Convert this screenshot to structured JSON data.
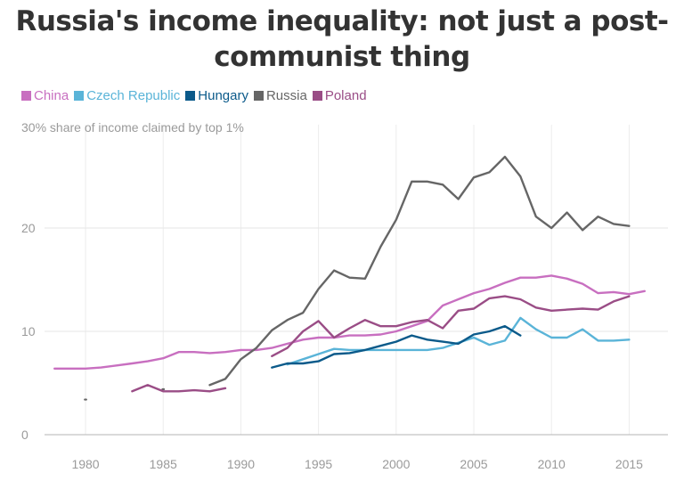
{
  "title": "Russia's income inequality: not just a post-communist thing",
  "title_lines": [
    "Russia's income inequality: not just a post-",
    "communist thing"
  ],
  "chart_data": {
    "type": "line",
    "title": "Russia's income inequality: not just a post-communist thing",
    "ylabel": "share of income claimed by top 1%",
    "ylabel_prefix": "30%",
    "xlim": [
      1976.5,
      2017.5
    ],
    "ylim": [
      0,
      30
    ],
    "xticks": [
      1980,
      1985,
      1990,
      1995,
      2000,
      2005,
      2010,
      2015
    ],
    "yticks": [
      0,
      10,
      20
    ],
    "grid": true,
    "legend_position": "top-left",
    "series": [
      {
        "name": "China",
        "color": "#c86fc0",
        "points": [
          [
            1978,
            6.4
          ],
          [
            1979,
            6.4
          ],
          [
            1980,
            6.4
          ],
          [
            1981,
            6.5
          ],
          [
            1982,
            6.7
          ],
          [
            1983,
            6.9
          ],
          [
            1984,
            7.1
          ],
          [
            1985,
            7.4
          ],
          [
            1986,
            8.0
          ],
          [
            1987,
            8.0
          ],
          [
            1988,
            7.9
          ],
          [
            1989,
            8.0
          ],
          [
            1990,
            8.2
          ],
          [
            1991,
            8.2
          ],
          [
            1992,
            8.4
          ],
          [
            1993,
            8.8
          ],
          [
            1994,
            9.2
          ],
          [
            1995,
            9.4
          ],
          [
            1996,
            9.4
          ],
          [
            1997,
            9.6
          ],
          [
            1998,
            9.6
          ],
          [
            1999,
            9.7
          ],
          [
            2000,
            10.0
          ],
          [
            2001,
            10.5
          ],
          [
            2002,
            11.0
          ],
          [
            2003,
            12.5
          ],
          [
            2004,
            13.1
          ],
          [
            2005,
            13.7
          ],
          [
            2006,
            14.1
          ],
          [
            2007,
            14.7
          ],
          [
            2008,
            15.2
          ],
          [
            2009,
            15.2
          ],
          [
            2010,
            15.4
          ],
          [
            2011,
            15.1
          ],
          [
            2012,
            14.6
          ],
          [
            2013,
            13.7
          ],
          [
            2014,
            13.8
          ],
          [
            2015,
            13.6
          ],
          [
            2016,
            13.9
          ]
        ]
      },
      {
        "name": "Czech Republic",
        "color": "#5ab4d8",
        "points": [
          [
            1993,
            6.8
          ],
          [
            1994,
            7.3
          ],
          [
            1995,
            7.8
          ],
          [
            1996,
            8.3
          ],
          [
            1997,
            8.2
          ],
          [
            1998,
            8.2
          ],
          [
            1999,
            8.2
          ],
          [
            2000,
            8.2
          ],
          [
            2001,
            8.2
          ],
          [
            2002,
            8.2
          ],
          [
            2003,
            8.4
          ],
          [
            2004,
            8.9
          ],
          [
            2005,
            9.4
          ],
          [
            2006,
            8.7
          ],
          [
            2007,
            9.1
          ],
          [
            2008,
            11.3
          ],
          [
            2009,
            10.2
          ],
          [
            2010,
            9.4
          ],
          [
            2011,
            9.4
          ],
          [
            2012,
            10.2
          ],
          [
            2013,
            9.1
          ],
          [
            2014,
            9.1
          ],
          [
            2015,
            9.2
          ]
        ]
      },
      {
        "name": "Hungary",
        "color": "#0b5a8a",
        "points": [
          [
            1992,
            6.5
          ],
          [
            1993,
            6.9
          ],
          [
            1994,
            6.9
          ],
          [
            1995,
            7.1
          ],
          [
            1996,
            7.8
          ],
          [
            1997,
            7.9
          ],
          [
            1998,
            8.2
          ],
          [
            1999,
            8.6
          ],
          [
            2000,
            9.0
          ],
          [
            2001,
            9.6
          ],
          [
            2002,
            9.2
          ],
          [
            2003,
            9.0
          ],
          [
            2004,
            8.8
          ],
          [
            2005,
            9.7
          ],
          [
            2006,
            10.0
          ],
          [
            2007,
            10.5
          ],
          [
            2008,
            9.6
          ]
        ]
      },
      {
        "name": "Russia",
        "color": "#666666",
        "segments": [
          [
            [
              1980,
              3.4
            ]
          ],
          [
            [
              1985,
              4.4
            ]
          ],
          [
            [
              1988,
              4.8
            ],
            [
              1989,
              5.4
            ],
            [
              1990,
              7.3
            ],
            [
              1991,
              8.4
            ],
            [
              1992,
              10.1
            ],
            [
              1993,
              11.1
            ],
            [
              1994,
              11.8
            ],
            [
              1995,
              14.1
            ],
            [
              1996,
              15.9
            ],
            [
              1997,
              15.2
            ],
            [
              1998,
              15.1
            ],
            [
              1999,
              18.2
            ],
            [
              2000,
              20.8
            ],
            [
              2001,
              24.5
            ],
            [
              2002,
              24.5
            ],
            [
              2003,
              24.2
            ],
            [
              2004,
              22.8
            ],
            [
              2005,
              24.9
            ],
            [
              2006,
              25.4
            ],
            [
              2007,
              26.9
            ],
            [
              2008,
              25.0
            ],
            [
              2009,
              21.1
            ],
            [
              2010,
              20.0
            ],
            [
              2011,
              21.5
            ],
            [
              2012,
              19.8
            ],
            [
              2013,
              21.1
            ],
            [
              2014,
              20.4
            ],
            [
              2015,
              20.2
            ]
          ]
        ]
      },
      {
        "name": "Poland",
        "color": "#9a4d86",
        "segments": [
          [
            [
              1983,
              4.2
            ],
            [
              1984,
              4.8
            ],
            [
              1985,
              4.2
            ],
            [
              1986,
              4.2
            ],
            [
              1987,
              4.3
            ],
            [
              1988,
              4.2
            ],
            [
              1989,
              4.5
            ]
          ],
          [
            [
              1992,
              7.6
            ],
            [
              1993,
              8.4
            ],
            [
              1994,
              10.0
            ],
            [
              1995,
              11.0
            ],
            [
              1996,
              9.4
            ],
            [
              1997,
              10.3
            ],
            [
              1998,
              11.1
            ],
            [
              1999,
              10.5
            ],
            [
              2000,
              10.5
            ],
            [
              2001,
              10.9
            ],
            [
              2002,
              11.1
            ],
            [
              2003,
              10.3
            ],
            [
              2004,
              12.0
            ],
            [
              2005,
              12.2
            ],
            [
              2006,
              13.2
            ],
            [
              2007,
              13.4
            ],
            [
              2008,
              13.1
            ],
            [
              2009,
              12.3
            ],
            [
              2010,
              12.0
            ],
            [
              2011,
              12.1
            ],
            [
              2012,
              12.2
            ],
            [
              2013,
              12.1
            ],
            [
              2014,
              12.9
            ],
            [
              2015,
              13.4
            ]
          ]
        ]
      }
    ]
  }
}
